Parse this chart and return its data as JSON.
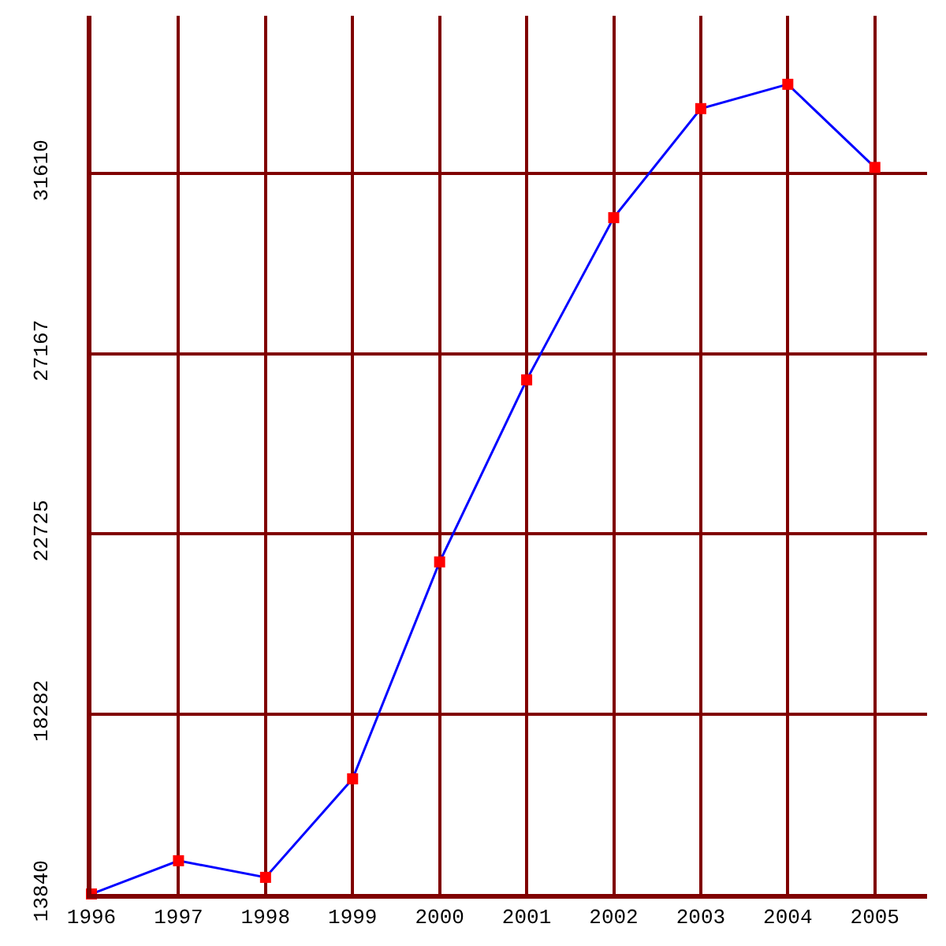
{
  "chart_data": {
    "type": "line",
    "x": [
      1996,
      1997,
      1998,
      1999,
      2000,
      2001,
      2002,
      2003,
      2004,
      2005
    ],
    "series": [
      {
        "color": "#0000ff",
        "values": [
          13840,
          14660,
          14250,
          16680,
          22030,
          26520,
          30520,
          33210,
          33810,
          31760
        ]
      }
    ],
    "xlim": [
      1996,
      2005.6
    ],
    "xticks": [
      1996,
      1997,
      1998,
      1999,
      2000,
      2001,
      2002,
      2003,
      2004,
      2005
    ],
    "ylim": [
      13840,
      35500
    ],
    "yticks": [
      13840,
      18282,
      22725,
      27167,
      31610
    ],
    "grid": true,
    "marker": "square",
    "line_style": "solid",
    "legend": false
  }
}
